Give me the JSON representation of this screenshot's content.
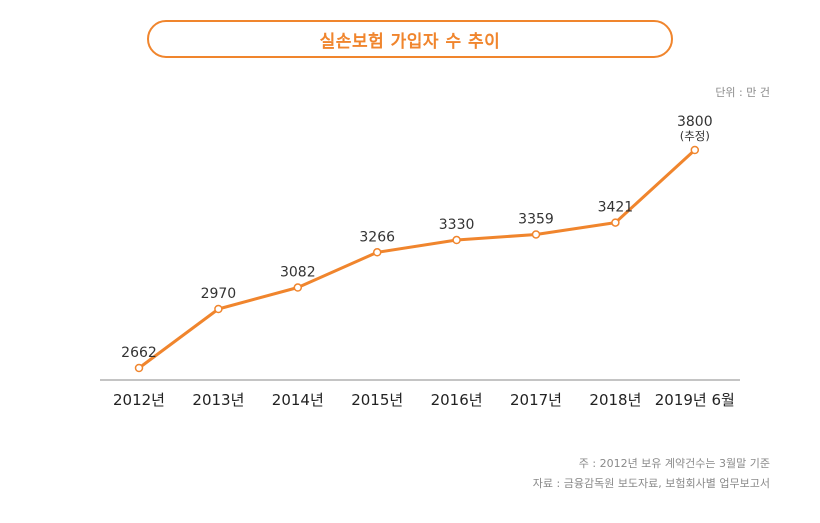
{
  "title": "실손보험 가입자 수 추이",
  "unit_label": "단위 : 만 건",
  "notes": {
    "note1": "주 : 2012년 보유 계약건수는 3월말 기준",
    "note2": "자료 : 금융감독원 보도자료, 보험회사별 업무보고서"
  },
  "colors": {
    "accent": "#f0852d",
    "axis": "#888888"
  },
  "chart_data": {
    "type": "line",
    "title": "실손보험 가입자 수 추이",
    "xlabel": "",
    "ylabel": "",
    "unit": "단위 : 만 건",
    "categories": [
      "2012년",
      "2013년",
      "2014년",
      "2015년",
      "2016년",
      "2017년",
      "2018년",
      "2019년 6월"
    ],
    "values": [
      2662,
      2970,
      3082,
      3266,
      3330,
      3359,
      3421,
      3800
    ],
    "value_labels": [
      "2662",
      "2970",
      "3082",
      "3266",
      "3330",
      "3359",
      "3421",
      "3800"
    ],
    "annotations": [
      "",
      "",
      "",
      "",
      "",
      "",
      "",
      "(추정)"
    ],
    "ylim": [
      2400,
      3950
    ],
    "grid": false,
    "legend": "none"
  }
}
